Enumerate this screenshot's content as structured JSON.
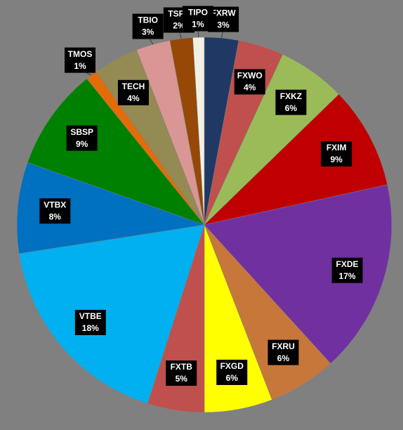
{
  "chart_data": {
    "type": "pie",
    "categories": [
      "FXRW",
      "FXWO",
      "FXKZ",
      "FXIM",
      "FXDE",
      "FXRU",
      "FXGD",
      "FXTB",
      "VTBE",
      "VTBX",
      "SBSP",
      "TMOS",
      "TECH",
      "TBIO",
      "TSPX",
      "TIPO"
    ],
    "values": [
      3,
      4,
      6,
      9,
      17,
      6,
      6,
      5,
      18,
      8,
      9,
      1,
      4,
      3,
      2,
      1
    ],
    "value_labels": [
      "3%",
      "4%",
      "6%",
      "9%",
      "17%",
      "6%",
      "6%",
      "5%",
      "18%",
      "8%",
      "9%",
      "1%",
      "4%",
      "3%",
      "2%",
      "1%"
    ],
    "colors": [
      "#1f3864",
      "#c0504d",
      "#9bbb59",
      "#c00000",
      "#7030a0",
      "#c8773a",
      "#ffff00",
      "#c0504d",
      "#00b0f0",
      "#0070c0",
      "#008000",
      "#e36c09",
      "#948a54",
      "#d99694",
      "#974806",
      "#f2f0e4"
    ]
  }
}
